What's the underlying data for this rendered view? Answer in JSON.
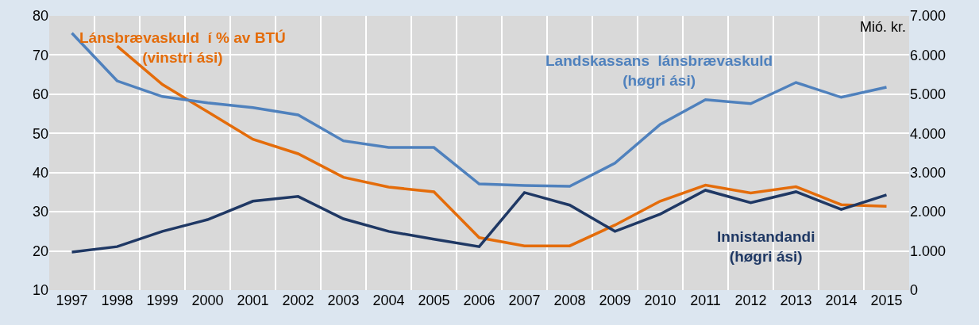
{
  "chart_data": {
    "type": "line",
    "categories": [
      "1997",
      "1998",
      "1999",
      "2000",
      "2001",
      "2002",
      "2003",
      "2004",
      "2005",
      "2006",
      "2007",
      "2008",
      "2009",
      "2010",
      "2011",
      "2012",
      "2013",
      "2014",
      "2015"
    ],
    "series": [
      {
        "name": "Lánsbrævaskuld  í % av BTÚ\n(vinstri ási)",
        "color": "#e46c0a",
        "values": [
          null,
          72.3,
          62.5,
          55.5,
          48.5,
          44.8,
          38.8,
          36.3,
          35.1,
          23.4,
          21.3,
          21.3,
          26.6,
          32.7,
          36.8,
          34.8,
          36.4,
          31.8,
          31.4
        ]
      },
      {
        "name": "Landskassans  lánsbrævaskuld\n(høgri ási)",
        "color": "#4f81bd",
        "axis": "y2",
        "values": [
          6560,
          5340,
          4940,
          4780,
          4660,
          4470,
          3810,
          3640,
          3640,
          2710,
          2670,
          2650,
          3240,
          4230,
          4860,
          4760,
          5300,
          4920,
          5180
        ]
      },
      {
        "name": "Innistandandi\n(høgri ási)",
        "color": "#1f3864",
        "axis": "y2",
        "values": [
          970,
          1110,
          1500,
          1800,
          2270,
          2390,
          1820,
          1500,
          1300,
          1110,
          2490,
          2170,
          1500,
          1940,
          2550,
          2230,
          2510,
          2060,
          2430
        ]
      }
    ],
    "y2label": "Mió. kr.",
    "ylim": [
      10,
      80
    ],
    "yticks": [
      10,
      20,
      30,
      40,
      50,
      60,
      70,
      80
    ],
    "y2lim": [
      0,
      7000
    ],
    "y2ticks": [
      0,
      {
        "value": 1000,
        "label": "1.000"
      },
      {
        "value": 2000,
        "label": "2.000"
      },
      {
        "value": 3000,
        "label": "3.000"
      },
      {
        "value": 4000,
        "label": "4.000"
      },
      {
        "value": 5000,
        "label": "5.000"
      },
      {
        "value": 6000,
        "label": "6.000"
      },
      {
        "value": 7000,
        "label": "7.000"
      }
    ],
    "grid": true,
    "legend": false,
    "marker": "none",
    "line_style": "solid"
  }
}
